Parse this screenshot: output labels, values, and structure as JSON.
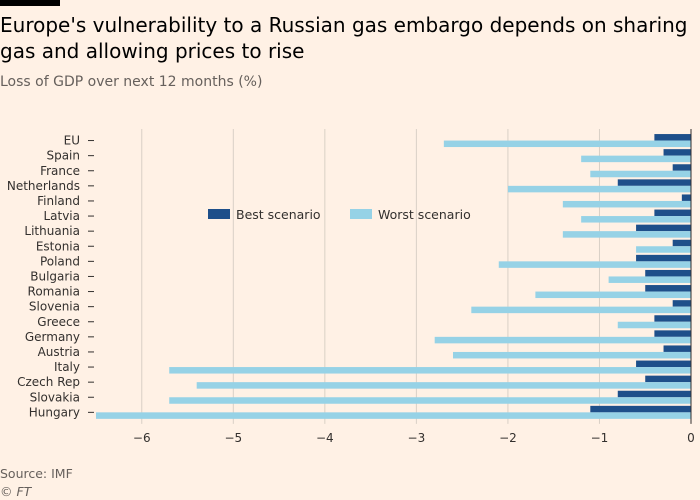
{
  "header": {
    "title": "Europe's vulnerability to a Russian gas embargo depends on sharing gas and allowing prices to rise",
    "subtitle": "Loss of GDP over next 12 months (%)"
  },
  "footer": {
    "source": "Source: IMF",
    "credit": "© FT"
  },
  "colors": {
    "background": "#fff1e5",
    "best": "#1e4f8a",
    "worst": "#96d2e6",
    "grid": "#d9d0c6",
    "zero_line": "#33302e"
  },
  "chart_data": {
    "type": "bar",
    "orientation": "horizontal",
    "title": "Europe's vulnerability to a Russian gas embargo depends on sharing gas and allowing prices to rise",
    "subtitle": "Loss of GDP over next 12 months (%)",
    "xlabel": "",
    "ylabel": "",
    "xlim": [
      -6.5,
      0
    ],
    "xticks": [
      -6,
      -5,
      -4,
      -3,
      -2,
      -1,
      0
    ],
    "grid": true,
    "legend_position": "top-center",
    "categories": [
      "EU",
      "Spain",
      "France",
      "Netherlands",
      "Finland",
      "Latvia",
      "Lithuania",
      "Estonia",
      "Poland",
      "Bulgaria",
      "Romania",
      "Slovenia",
      "Greece",
      "Germany",
      "Austria",
      "Italy",
      "Czech Rep",
      "Slovakia",
      "Hungary"
    ],
    "series": [
      {
        "name": "Best scenario",
        "values": [
          -0.4,
          -0.3,
          -0.2,
          -0.8,
          -0.1,
          -0.4,
          -0.6,
          -0.2,
          -0.6,
          -0.5,
          -0.5,
          -0.2,
          -0.4,
          -0.4,
          -0.3,
          -0.6,
          -0.5,
          -0.8,
          -1.1
        ]
      },
      {
        "name": "Worst scenario",
        "values": [
          -2.7,
          -1.2,
          -1.1,
          -2.0,
          -1.4,
          -1.2,
          -1.4,
          -0.6,
          -2.1,
          -0.9,
          -1.7,
          -2.4,
          -0.8,
          -2.8,
          -2.6,
          -5.7,
          -5.4,
          -5.7,
          -6.5
        ]
      }
    ]
  }
}
